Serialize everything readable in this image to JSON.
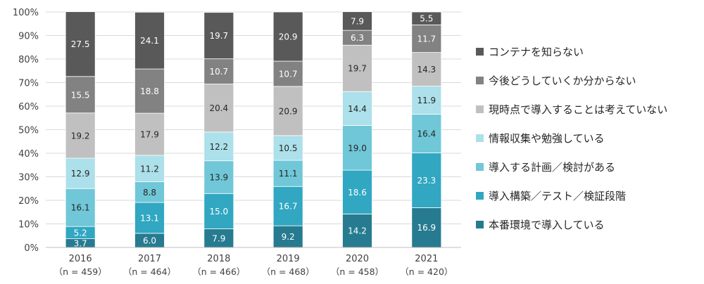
{
  "chart_data": {
    "type": "bar",
    "stacked": true,
    "percent": true,
    "title": "",
    "xlabel": "",
    "ylabel": "",
    "ylim": [
      0,
      100
    ],
    "yticks": [
      "0%",
      "10%",
      "20%",
      "30%",
      "40%",
      "50%",
      "60%",
      "70%",
      "80%",
      "90%",
      "100%"
    ],
    "categories": [
      "2016",
      "2017",
      "2018",
      "2019",
      "2020",
      "2021"
    ],
    "category_sublabels": [
      "（n = 459）",
      "（n = 464）",
      "（n = 466）",
      "（n = 468）",
      "（n = 458）",
      "（n = 420）"
    ],
    "grid": true,
    "legend_position": "right",
    "series": [
      {
        "name": "本番環境で導入している",
        "color": "#277b90",
        "values": [
          3.7,
          6.0,
          7.9,
          9.2,
          14.2,
          16.9
        ]
      },
      {
        "name": "導入構築／テスト／検証段階",
        "color": "#31a7c2",
        "values": [
          5.2,
          13.1,
          15.0,
          16.7,
          18.6,
          23.3
        ]
      },
      {
        "name": "導入する計画／検討がある",
        "color": "#70c7d8",
        "values": [
          16.1,
          8.8,
          13.9,
          11.1,
          19.0,
          16.4
        ]
      },
      {
        "name": "情報収集や勉強している",
        "color": "#ace0ea",
        "values": [
          12.9,
          11.2,
          12.2,
          10.5,
          14.4,
          11.9
        ]
      },
      {
        "name": "現時点で導入することは考えていない",
        "color": "#c0c0c0",
        "values": [
          19.2,
          17.9,
          20.4,
          20.9,
          19.7,
          14.3
        ]
      },
      {
        "name": "今後どうしていくか分からない",
        "color": "#828282",
        "values": [
          15.5,
          18.8,
          10.7,
          10.7,
          6.3,
          11.7
        ]
      },
      {
        "name": "コンテナを知らない",
        "color": "#595959",
        "values": [
          27.5,
          24.1,
          19.7,
          20.9,
          7.9,
          5.5
        ]
      }
    ],
    "value_label_colors": {
      "light": "#ffffff",
      "dark": "#262626"
    }
  }
}
